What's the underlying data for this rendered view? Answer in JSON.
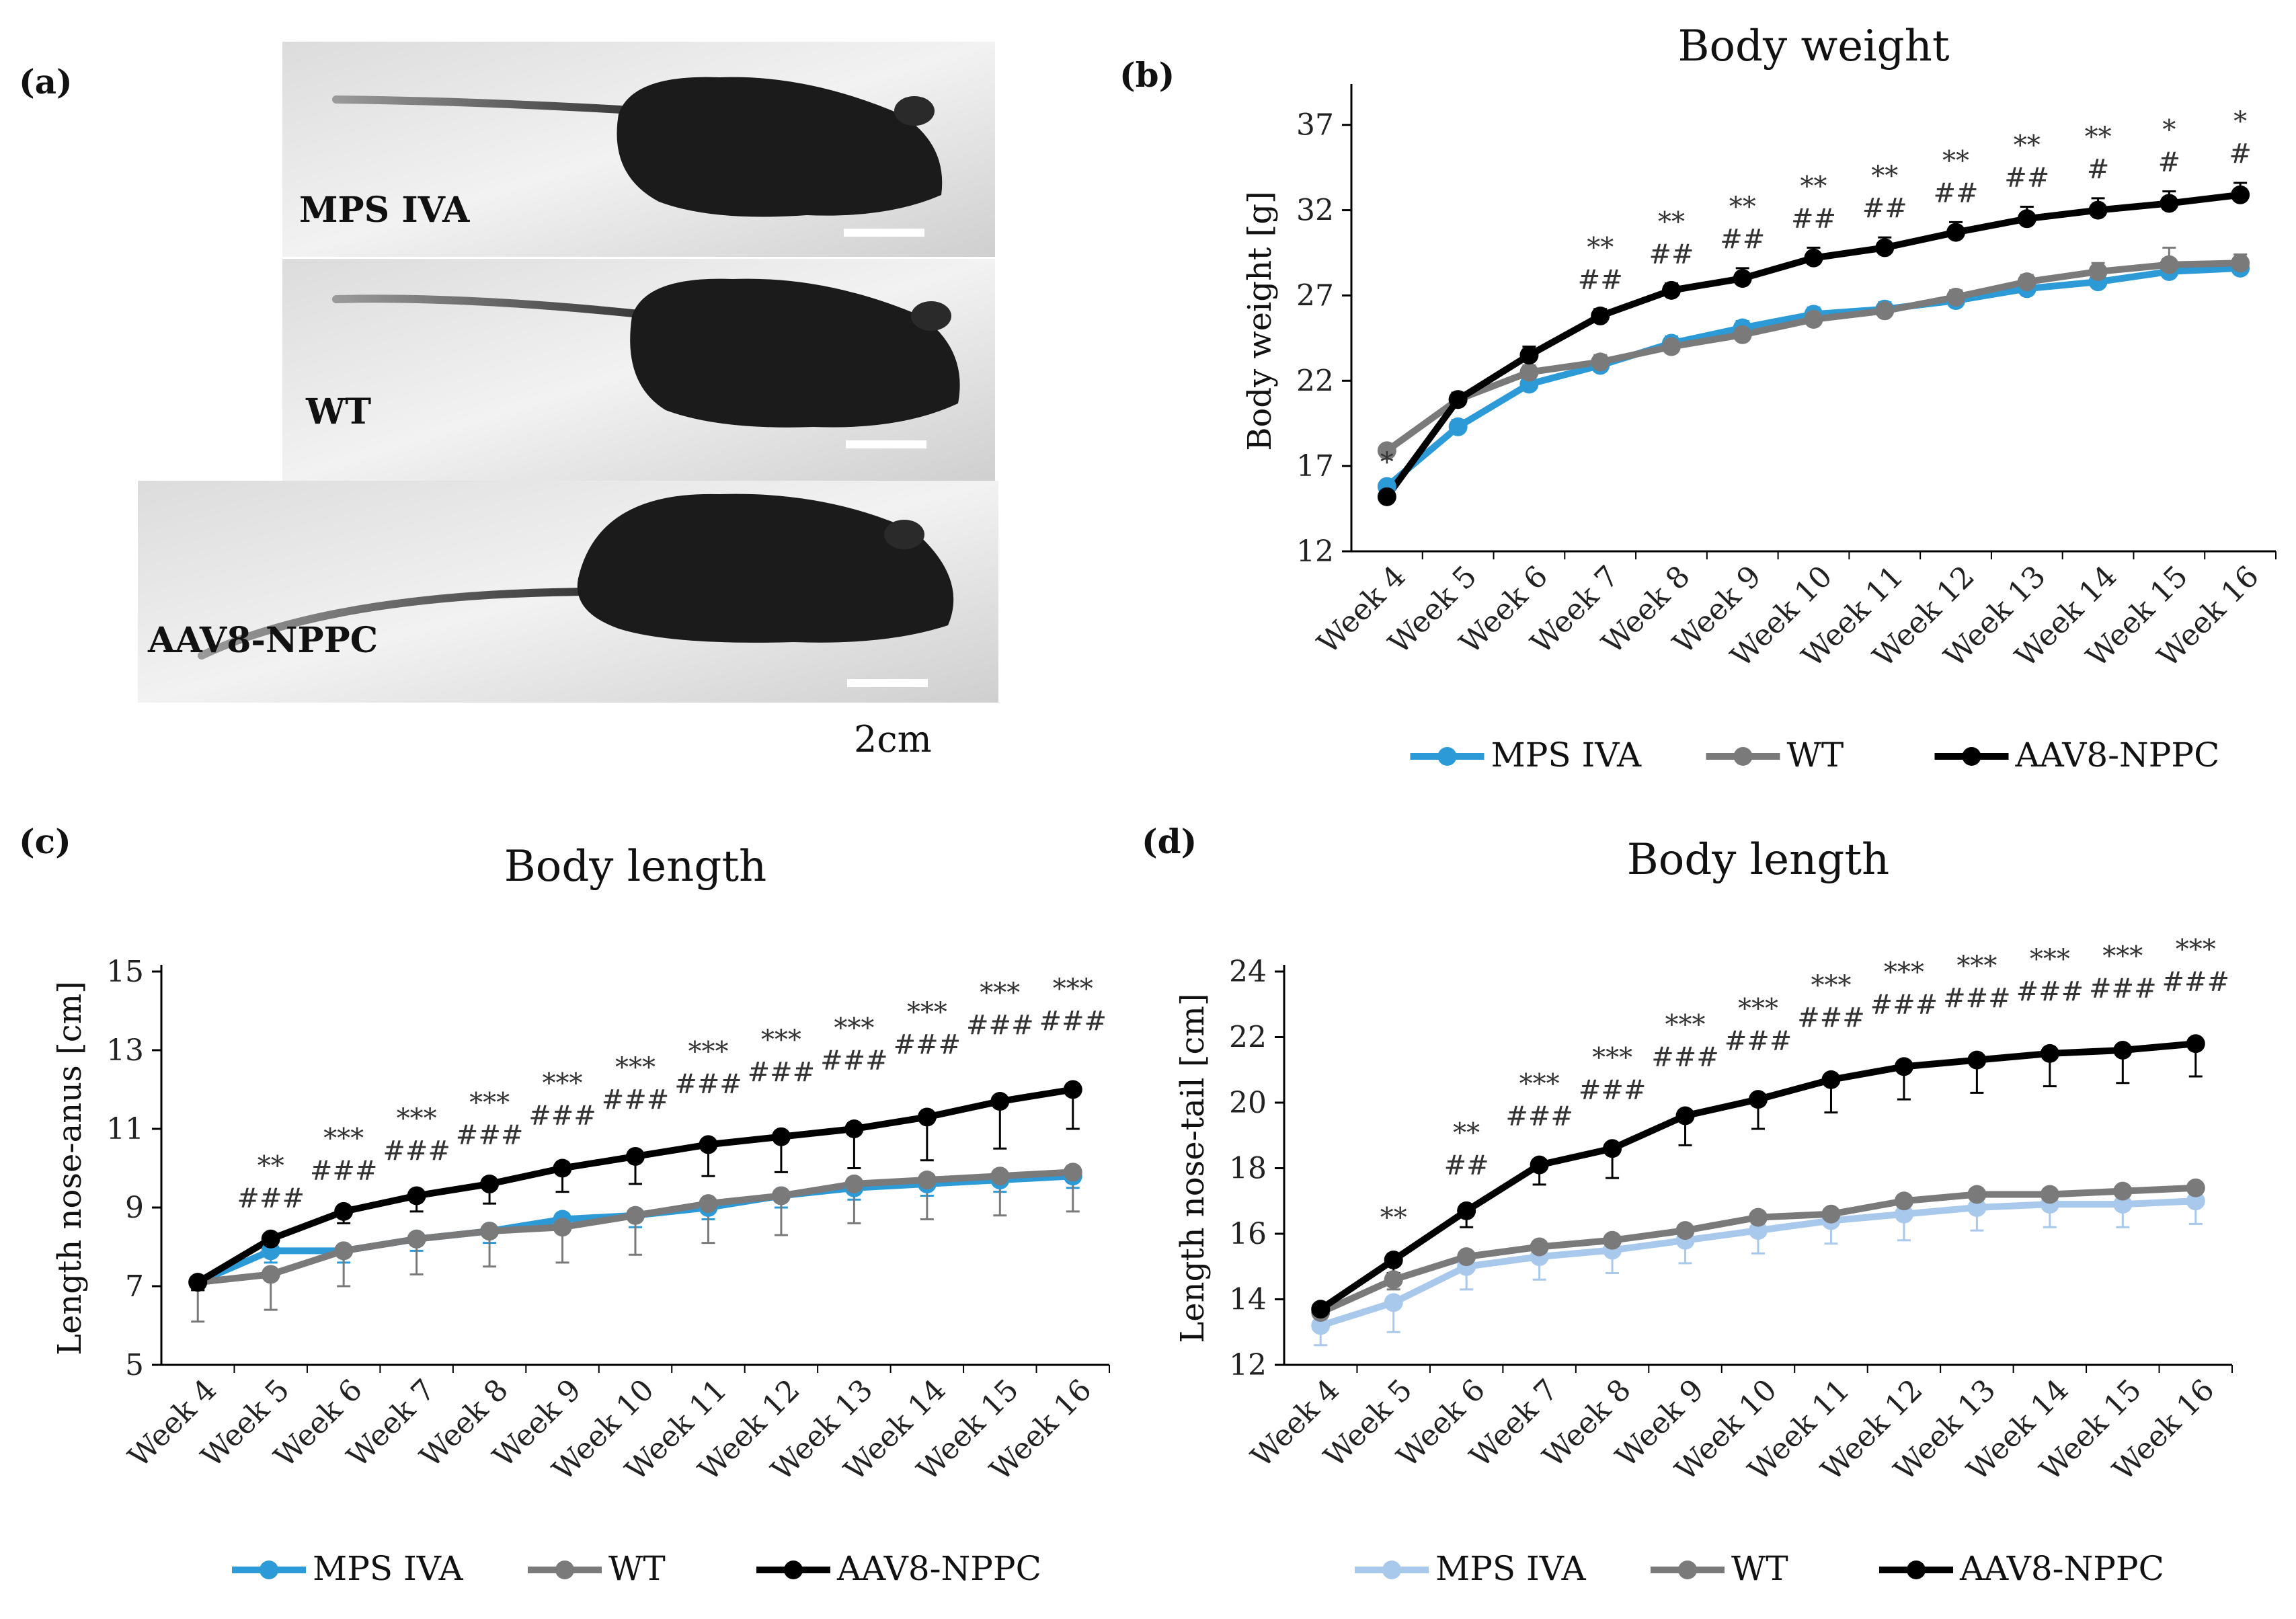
{
  "panel_labels": {
    "a": "(a)",
    "b": "(b)",
    "c": "(c)",
    "d": "(d)"
  },
  "photo": {
    "labels": [
      "MPS IVA",
      "WT",
      "AAV8-NPPC"
    ],
    "scale_bar_label": "2cm"
  },
  "series_names": [
    "MPS IVA",
    "WT",
    "AAV8-NPPC"
  ],
  "colors": {
    "MPS IVA": "#2c9ad6",
    "MPS IVA (d)": "#a8c8ec",
    "WT": "#7a7a7a",
    "AAV8-NPPC": "#000000",
    "axis": "#000000"
  },
  "chart_data": [
    {
      "id": "b",
      "type": "line",
      "title": "Body weight",
      "xlabel": "",
      "ylabel": "Body weight [g]",
      "ylim": [
        12,
        39
      ],
      "yticks": [
        12,
        17,
        22,
        27,
        32,
        37
      ],
      "categories": [
        "Week 4",
        "Week 5",
        "Week 6",
        "Week 7",
        "Week 8",
        "Week 9",
        "Week 10",
        "Week 11",
        "Week 12",
        "Week 13",
        "Week 14",
        "Week 15",
        "Week 16"
      ],
      "series": [
        {
          "name": "MPS IVA",
          "values": [
            15.8,
            19.3,
            21.8,
            22.9,
            24.2,
            25.1,
            25.9,
            26.2,
            26.7,
            27.4,
            27.8,
            28.4,
            28.6
          ],
          "error": [
            0.3,
            0.4,
            0.4,
            0.4,
            0.4,
            0.4,
            0.4,
            0.4,
            0.4,
            0.4,
            0.5,
            0.5,
            0.5
          ]
        },
        {
          "name": "WT",
          "values": [
            17.9,
            20.9,
            22.5,
            23.1,
            24.0,
            24.7,
            25.6,
            26.1,
            26.9,
            27.8,
            28.4,
            28.8,
            28.9
          ],
          "error": [
            0.3,
            0.4,
            0.4,
            0.4,
            0.4,
            0.4,
            0.4,
            0.4,
            0.4,
            0.4,
            0.5,
            1.0,
            0.5
          ]
        },
        {
          "name": "AAV8-NPPC",
          "values": [
            15.2,
            20.9,
            23.5,
            25.8,
            27.3,
            28.0,
            29.2,
            29.8,
            30.7,
            31.5,
            32.0,
            32.4,
            32.9
          ],
          "error": [
            0.3,
            0.4,
            0.5,
            0.4,
            0.4,
            0.6,
            0.6,
            0.6,
            0.6,
            0.7,
            0.7,
            0.7,
            0.7
          ]
        }
      ],
      "sig_top": [
        "*",
        "",
        "",
        "**",
        "**",
        "**",
        "**",
        "**",
        "**",
        "**",
        "**",
        "*",
        "*"
      ],
      "sig_bottom": [
        "",
        "",
        "",
        "##",
        "##",
        "##",
        "##",
        "##",
        "##",
        "##",
        "#",
        "#",
        "#"
      ]
    },
    {
      "id": "c",
      "type": "line",
      "title": "Body length",
      "xlabel": "",
      "ylabel": "Length nose-anus [cm]",
      "ylim": [
        5,
        15
      ],
      "yticks": [
        5,
        7,
        9,
        11,
        13,
        15
      ],
      "categories": [
        "Week 4",
        "Week 5",
        "Week 6",
        "Week 7",
        "Week 8",
        "Week 9",
        "Week 10",
        "Week 11",
        "Week 12",
        "Week 13",
        "Week 14",
        "Week 15",
        "Week 16"
      ],
      "series": [
        {
          "name": "MPS IVA",
          "values": [
            7.1,
            7.9,
            7.9,
            8.2,
            8.4,
            8.7,
            8.8,
            9.0,
            9.3,
            9.5,
            9.6,
            9.7,
            9.8
          ],
          "error": [
            0.2,
            0.3,
            0.3,
            0.3,
            0.3,
            0.3,
            0.3,
            0.3,
            0.3,
            0.3,
            0.3,
            0.3,
            0.3
          ]
        },
        {
          "name": "WT",
          "values": [
            7.1,
            7.3,
            7.9,
            8.2,
            8.4,
            8.5,
            8.8,
            9.1,
            9.3,
            9.6,
            9.7,
            9.8,
            9.9
          ],
          "error": [
            1.0,
            0.9,
            0.9,
            0.9,
            0.9,
            0.9,
            1.0,
            1.0,
            1.0,
            1.0,
            1.0,
            1.0,
            1.0
          ]
        },
        {
          "name": "AAV8-NPPC",
          "values": [
            7.1,
            8.2,
            8.9,
            9.3,
            9.6,
            10.0,
            10.3,
            10.6,
            10.8,
            11.0,
            11.3,
            11.7,
            12.0
          ],
          "error": [
            0.2,
            0.3,
            0.3,
            0.4,
            0.5,
            0.6,
            0.7,
            0.8,
            0.9,
            1.0,
            1.1,
            1.2,
            1.0
          ]
        }
      ],
      "sig_top": [
        "",
        "**",
        "***",
        "***",
        "***",
        "***",
        "***",
        "***",
        "***",
        "***",
        "***",
        "***",
        "***"
      ],
      "sig_bottom": [
        "",
        "###",
        "###",
        "###",
        "###",
        "###",
        "###",
        "###",
        "###",
        "###",
        "###",
        "###",
        "###"
      ]
    },
    {
      "id": "d",
      "type": "line",
      "title": "Body length",
      "xlabel": "",
      "ylabel": "Length nose-tail [cm]",
      "ylim": [
        12,
        24
      ],
      "yticks": [
        12,
        14,
        16,
        18,
        20,
        22,
        24
      ],
      "categories": [
        "Week 4",
        "Week 5",
        "Week 6",
        "Week 7",
        "Week 8",
        "Week 9",
        "Week 10",
        "Week 11",
        "Week 12",
        "Week 13",
        "Week 14",
        "Week 15",
        "Week 16"
      ],
      "series": [
        {
          "name": "MPS IVA",
          "values": [
            13.2,
            13.9,
            15.0,
            15.3,
            15.5,
            15.8,
            16.1,
            16.4,
            16.6,
            16.8,
            16.9,
            16.9,
            17.0
          ],
          "error": [
            0.6,
            0.9,
            0.7,
            0.7,
            0.7,
            0.7,
            0.7,
            0.7,
            0.8,
            0.7,
            0.7,
            0.7,
            0.7
          ]
        },
        {
          "name": "WT",
          "values": [
            13.6,
            14.6,
            15.3,
            15.6,
            15.8,
            16.1,
            16.5,
            16.6,
            17.0,
            17.2,
            17.2,
            17.3,
            17.4
          ],
          "error": [
            0.2,
            0.3,
            0.3,
            0.3,
            0.3,
            0.3,
            0.3,
            0.3,
            0.3,
            0.3,
            0.3,
            0.3,
            0.3
          ]
        },
        {
          "name": "AAV8-NPPC",
          "values": [
            13.7,
            15.2,
            16.7,
            18.1,
            18.6,
            19.6,
            20.1,
            20.7,
            21.1,
            21.3,
            21.5,
            21.6,
            21.8
          ],
          "error": [
            0.3,
            0.4,
            0.5,
            0.6,
            0.9,
            0.9,
            0.9,
            1.0,
            1.0,
            1.0,
            1.0,
            1.0,
            1.0
          ]
        }
      ],
      "sig_top": [
        "",
        "**",
        "**",
        "***",
        "***",
        "***",
        "***",
        "***",
        "***",
        "***",
        "***",
        "***",
        "***"
      ],
      "sig_bottom": [
        "",
        "",
        "##",
        "###",
        "###",
        "###",
        "###",
        "###",
        "###",
        "###",
        "###",
        "###",
        "###"
      ]
    }
  ]
}
